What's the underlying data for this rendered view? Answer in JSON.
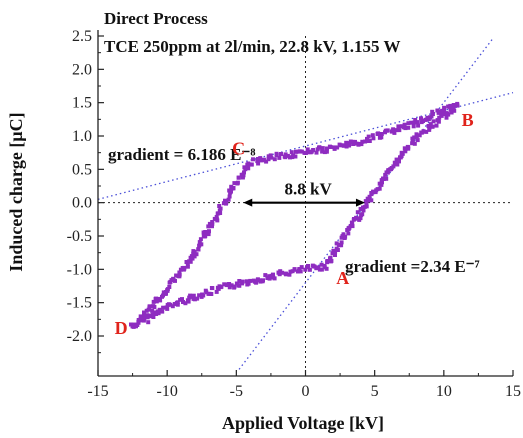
{
  "chart_data": {
    "type": "scatter",
    "title": "Direct Process",
    "subtitle": "TCE 250ppm at 2l/min, 22.8 kV, 1.155 W",
    "xlabel": "Applied Voltage [kV]",
    "ylabel": "Induced charge [µC]",
    "xlim": [
      -15,
      15
    ],
    "ylim": [
      -2.6,
      2.5
    ],
    "xticks": [
      "-15",
      "-10",
      "-5",
      "0",
      "5",
      "10",
      "15"
    ],
    "xtick_values": [
      -15,
      -10,
      -5,
      0,
      5,
      10,
      15
    ],
    "yticks": [
      "2.5",
      "2.0",
      "1.5",
      "1.0",
      "0.5",
      "0.0",
      "-0.5",
      "-1.0",
      "-1.5",
      "-2.0"
    ],
    "ytick_values": [
      2.5,
      2.0,
      1.5,
      1.0,
      0.5,
      0.0,
      -0.5,
      -1.0,
      -1.5,
      -2.0
    ],
    "marker_color": "#8e2cc0",
    "loop_vertices": [
      {
        "label": "D",
        "x": -12.5,
        "y": -1.85
      },
      {
        "label": "A",
        "x": 1.5,
        "y": -0.95
      },
      {
        "label": "B",
        "x": 11.0,
        "y": 1.45
      },
      {
        "label": "C",
        "x": -4.0,
        "y": 0.6
      }
    ],
    "lower_branch": [
      [
        -12.5,
        -1.85
      ],
      [
        -11.5,
        -1.75
      ],
      [
        -10.5,
        -1.62
      ],
      [
        -9.0,
        -1.48
      ],
      [
        -7.5,
        -1.38
      ],
      [
        -6.0,
        -1.28
      ],
      [
        -4.0,
        -1.18
      ],
      [
        -2.0,
        -1.08
      ],
      [
        0.0,
        -1.0
      ],
      [
        1.5,
        -0.95
      ],
      [
        2.5,
        -0.6
      ],
      [
        3.5,
        -0.3
      ],
      [
        4.5,
        0.0
      ],
      [
        5.5,
        0.3
      ],
      [
        6.5,
        0.6
      ],
      [
        7.5,
        0.85
      ],
      [
        8.5,
        1.05
      ],
      [
        9.5,
        1.22
      ],
      [
        10.3,
        1.35
      ],
      [
        11.0,
        1.45
      ]
    ],
    "upper_branch": [
      [
        11.0,
        1.45
      ],
      [
        9.5,
        1.35
      ],
      [
        8.0,
        1.2
      ],
      [
        6.0,
        1.05
      ],
      [
        4.0,
        0.92
      ],
      [
        2.0,
        0.82
      ],
      [
        0.0,
        0.75
      ],
      [
        -2.0,
        0.7
      ],
      [
        -4.0,
        0.6
      ],
      [
        -5.0,
        0.3
      ],
      [
        -6.0,
        -0.05
      ],
      [
        -7.0,
        -0.4
      ],
      [
        -8.0,
        -0.75
      ],
      [
        -9.0,
        -1.05
      ],
      [
        -10.0,
        -1.3
      ],
      [
        -11.0,
        -1.55
      ],
      [
        -12.0,
        -1.75
      ],
      [
        -12.5,
        -1.85
      ]
    ],
    "gradient_lines": [
      {
        "label": "gradient = 6.186 E⁻⁸",
        "points": [
          [
            -15,
            0.05
          ],
          [
            15,
            1.65
          ]
        ]
      },
      {
        "label": "gradient =2.34 E⁻⁷",
        "points": [
          [
            -4.8,
            -2.5
          ],
          [
            13.5,
            2.45
          ]
        ]
      }
    ],
    "zero_lines": true,
    "span_arrow": {
      "label": "8.8 kV",
      "x_from": -4.5,
      "x_to": 4.3,
      "y": 0.0
    }
  }
}
